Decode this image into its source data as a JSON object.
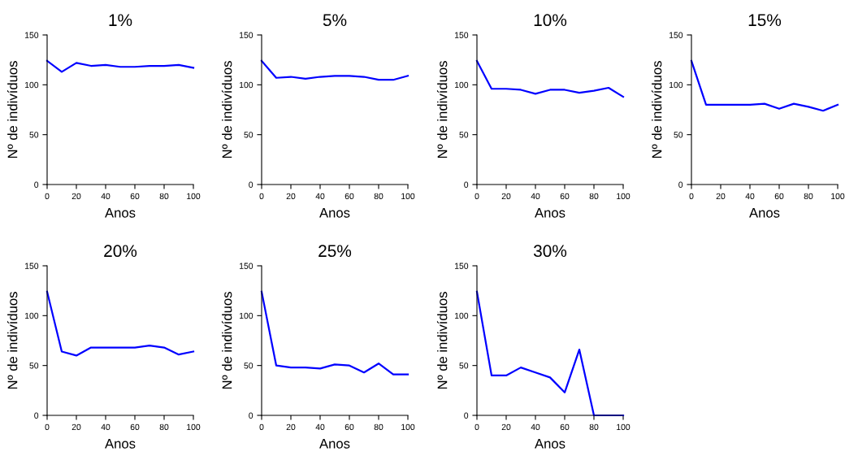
{
  "chart_data": [
    {
      "type": "line",
      "title": "1%",
      "xlabel": "Anos",
      "ylabel": "Nº de indivíduos",
      "x": [
        0,
        10,
        20,
        30,
        40,
        50,
        60,
        70,
        80,
        90,
        100
      ],
      "xlim": [
        0,
        100
      ],
      "xticks": [
        0,
        20,
        40,
        60,
        80,
        100
      ],
      "ylim": [
        0,
        150
      ],
      "yticks": [
        0,
        50,
        100,
        150
      ],
      "series": [
        {
          "color": "#0000ff",
          "values": [
            124,
            113,
            122,
            119,
            120,
            118,
            118,
            119,
            119,
            120,
            117
          ]
        }
      ]
    },
    {
      "type": "line",
      "title": "5%",
      "xlabel": "Anos",
      "ylabel": "Nº de indivíduos",
      "x": [
        0,
        10,
        20,
        30,
        40,
        50,
        60,
        70,
        80,
        90,
        100
      ],
      "xlim": [
        0,
        100
      ],
      "xticks": [
        0,
        20,
        40,
        60,
        80,
        100
      ],
      "ylim": [
        0,
        150
      ],
      "yticks": [
        0,
        50,
        100,
        150
      ],
      "series": [
        {
          "color": "#0000ff",
          "values": [
            124,
            107,
            108,
            106,
            108,
            109,
            109,
            108,
            105,
            105,
            109
          ]
        }
      ]
    },
    {
      "type": "line",
      "title": "10%",
      "xlabel": "Anos",
      "ylabel": "Nº de indivíduos",
      "x": [
        0,
        10,
        20,
        30,
        40,
        50,
        60,
        70,
        80,
        90,
        100
      ],
      "xlim": [
        0,
        100
      ],
      "xticks": [
        0,
        20,
        40,
        60,
        80,
        100
      ],
      "ylim": [
        0,
        150
      ],
      "yticks": [
        0,
        50,
        100,
        150
      ],
      "series": [
        {
          "color": "#0000ff",
          "values": [
            124,
            96,
            96,
            95,
            91,
            95,
            95,
            92,
            94,
            97,
            88
          ]
        }
      ]
    },
    {
      "type": "line",
      "title": "15%",
      "xlabel": "Anos",
      "ylabel": "Nº de indivíduos",
      "x": [
        0,
        10,
        20,
        30,
        40,
        50,
        60,
        70,
        80,
        90,
        100
      ],
      "xlim": [
        0,
        100
      ],
      "xticks": [
        0,
        20,
        40,
        60,
        80,
        100
      ],
      "ylim": [
        0,
        150
      ],
      "yticks": [
        0,
        50,
        100,
        150
      ],
      "series": [
        {
          "color": "#0000ff",
          "values": [
            124,
            80,
            80,
            80,
            80,
            81,
            76,
            81,
            78,
            74,
            80
          ]
        }
      ]
    },
    {
      "type": "line",
      "title": "20%",
      "xlabel": "Anos",
      "ylabel": "Nº de indivíduos",
      "x": [
        0,
        10,
        20,
        30,
        40,
        50,
        60,
        70,
        80,
        90,
        100
      ],
      "xlim": [
        0,
        100
      ],
      "xticks": [
        0,
        20,
        40,
        60,
        80,
        100
      ],
      "ylim": [
        0,
        150
      ],
      "yticks": [
        0,
        50,
        100,
        150
      ],
      "series": [
        {
          "color": "#0000ff",
          "values": [
            124,
            64,
            60,
            68,
            68,
            68,
            68,
            70,
            68,
            61,
            64
          ]
        }
      ]
    },
    {
      "type": "line",
      "title": "25%",
      "xlabel": "Anos",
      "ylabel": "Nº de indivíduos",
      "x": [
        0,
        10,
        20,
        30,
        40,
        50,
        60,
        70,
        80,
        90,
        100
      ],
      "xlim": [
        0,
        100
      ],
      "xticks": [
        0,
        20,
        40,
        60,
        80,
        100
      ],
      "ylim": [
        0,
        150
      ],
      "yticks": [
        0,
        50,
        100,
        150
      ],
      "series": [
        {
          "color": "#0000ff",
          "values": [
            124,
            50,
            48,
            48,
            47,
            51,
            50,
            43,
            52,
            41,
            41
          ]
        }
      ]
    },
    {
      "type": "line",
      "title": "30%",
      "xlabel": "Anos",
      "ylabel": "Nº de indivíduos",
      "x": [
        0,
        10,
        20,
        30,
        40,
        50,
        60,
        70,
        80,
        90,
        100
      ],
      "xlim": [
        0,
        100
      ],
      "xticks": [
        0,
        20,
        40,
        60,
        80,
        100
      ],
      "ylim": [
        0,
        150
      ],
      "yticks": [
        0,
        50,
        100,
        150
      ],
      "series": [
        {
          "color": "#0000ff",
          "values": [
            124,
            40,
            40,
            48,
            43,
            38,
            23,
            66,
            0,
            0,
            0
          ]
        }
      ]
    }
  ]
}
